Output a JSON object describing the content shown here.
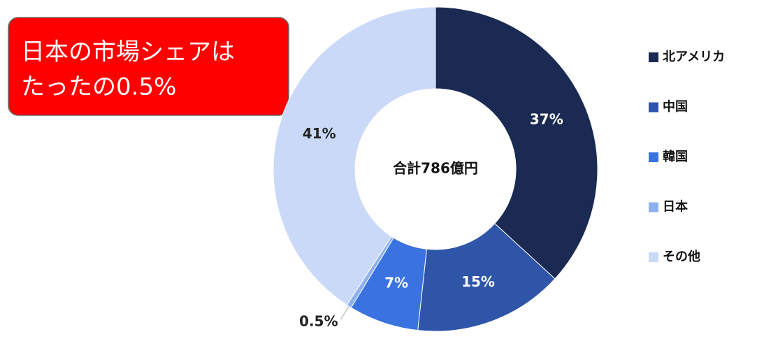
{
  "chart_data": {
    "type": "donut",
    "center_label": "合計786億円",
    "annotation": [
      "日本の市場シェアは",
      "たったの0.5%"
    ],
    "categories": [
      "北アメリカ",
      "中国",
      "韓国",
      "日本",
      "その他"
    ],
    "values": [
      37,
      15,
      7,
      0.5,
      41
    ],
    "value_labels": [
      "37%",
      "15%",
      "7%",
      "0.5%",
      "41%"
    ],
    "colors": [
      "#1a2a52",
      "#2e55a8",
      "#3a72e0",
      "#8eb0f0",
      "#c9d9f7"
    ],
    "legend": "right"
  }
}
